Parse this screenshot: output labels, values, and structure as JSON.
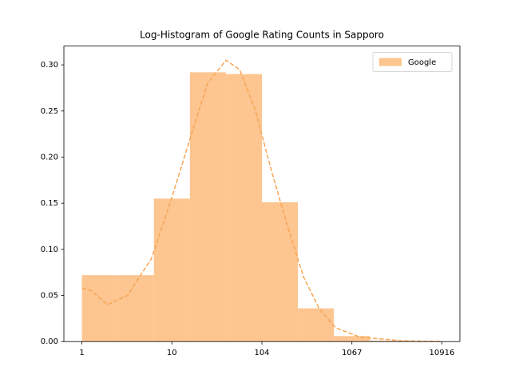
{
  "chart_data": {
    "type": "histogram",
    "title": "Log-Histogram of Google Rating Counts in Sapporo",
    "bins": [
      0,
      0.4038,
      0.8076,
      1.2114,
      1.6152,
      2.019,
      2.4228,
      2.8266,
      3.2304,
      3.6342,
      4.038
    ],
    "series": [
      {
        "name": "Google",
        "color": "#fdc590",
        "values": [
          0.072,
          0.072,
          0.155,
          0.292,
          0.29,
          0.151,
          0.036,
          0.006,
          0.001,
          0.0005
        ]
      }
    ],
    "kde": {
      "color": "#f6a656",
      "x": [
        0,
        0.108,
        0.287,
        0.511,
        0.78,
        1.005,
        1.23,
        1.41,
        1.616,
        1.769,
        1.948,
        2.127,
        2.307,
        2.487,
        2.666,
        2.846,
        3.115,
        3.564,
        4.038
      ],
      "y": [
        0.058,
        0.055,
        0.04,
        0.05,
        0.09,
        0.155,
        0.225,
        0.28,
        0.305,
        0.295,
        0.25,
        0.185,
        0.125,
        0.07,
        0.035,
        0.015,
        0.005,
        0.001,
        0.0
      ]
    },
    "xlim": [
      -0.202,
      4.24
    ],
    "xticks": [
      {
        "value": 0,
        "label": "1"
      },
      {
        "value": 1.0095,
        "label": "10"
      },
      {
        "value": 2.019,
        "label": "104"
      },
      {
        "value": 3.0285,
        "label": "1067"
      },
      {
        "value": 4.038,
        "label": "10916"
      }
    ],
    "ylim": [
      0,
      0.3204
    ],
    "yticks": [
      {
        "value": 0,
        "label": "0.00"
      },
      {
        "value": 0.05,
        "label": "0.05"
      },
      {
        "value": 0.1,
        "label": "0.10"
      },
      {
        "value": 0.15,
        "label": "0.15"
      },
      {
        "value": 0.2,
        "label": "0.20"
      },
      {
        "value": 0.25,
        "label": "0.25"
      },
      {
        "value": 0.3,
        "label": "0.30"
      }
    ],
    "legend": "upper right"
  }
}
